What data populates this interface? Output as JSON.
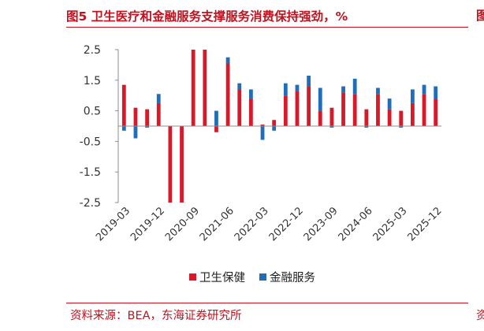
{
  "figure": {
    "title": "图5  卫生医疗和金融服务支撑服务消费保持强劲，%",
    "right_edge_top": "图",
    "source": "资料来源：BEA，东海证券研究所",
    "right_edge_bottom": "资"
  },
  "chart_data": {
    "type": "bar",
    "stacked": true,
    "title": "图5  卫生医疗和金融服务支撑服务消费保持强劲，%",
    "xlabel": "",
    "ylabel": "",
    "ylim": [
      -2.5,
      2.5
    ],
    "yticks": [
      "2.5",
      "1.5",
      "0.5",
      "-0.5",
      "-1.5",
      "-2.5"
    ],
    "x_tick_labels": [
      "2019-03",
      "2019-12",
      "2020-09",
      "2021-06",
      "2022-03",
      "2022-12",
      "2023-09",
      "2024-06",
      "2025-03",
      "2025-12"
    ],
    "x_tick_every": 3,
    "legend_position": "bottom",
    "categories": [
      "2019-03",
      "2019-06",
      "2019-09",
      "2019-12",
      "2020-03",
      "2020-06",
      "2020-09",
      "2020-12",
      "2021-03",
      "2021-06",
      "2021-09",
      "2021-12",
      "2022-03",
      "2022-06",
      "2022-09",
      "2022-12",
      "2023-03",
      "2023-06",
      "2023-09",
      "2023-12",
      "2024-03",
      "2024-06",
      "2024-09",
      "2024-12",
      "2025-03",
      "2025-06",
      "2025-09",
      "2025-12"
    ],
    "series": [
      {
        "name": "卫生保健",
        "color": "#d7192a",
        "values": [
          1.35,
          0.6,
          0.55,
          0.75,
          -2.6,
          -2.6,
          2.5,
          2.5,
          -0.2,
          2.05,
          1.2,
          0.9,
          0.05,
          0.2,
          1.0,
          1.15,
          1.3,
          0.5,
          0.6,
          1.1,
          1.05,
          0.55,
          1.05,
          0.55,
          0.5,
          0.75,
          1.05,
          0.9
        ]
      },
      {
        "name": "金融服务",
        "color": "#1f6eb9",
        "values": [
          -0.15,
          -0.4,
          -0.05,
          0.3,
          -0.05,
          -0.1,
          0.05,
          0.05,
          0.5,
          0.2,
          0.2,
          0.3,
          -0.45,
          -0.15,
          0.4,
          0.2,
          0.35,
          0.75,
          -0.05,
          0.2,
          0.5,
          -0.05,
          0.2,
          0.35,
          -0.05,
          0.45,
          0.3,
          0.4
        ]
      }
    ]
  }
}
